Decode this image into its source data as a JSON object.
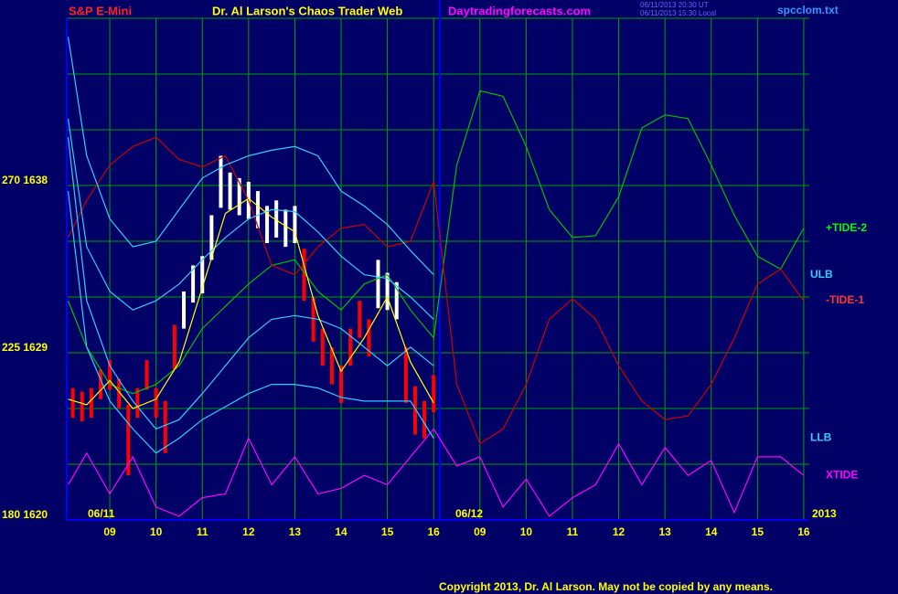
{
  "chart_data": {
    "type": "line",
    "symbol": "S&P E-Mini",
    "title": "Dr. Al Larson's Chaos Trader Web",
    "site": "Daytradingforecasts.com",
    "timestamps": [
      "06/11/2013 20:30 UT",
      "06/11/2013 15:30 Local"
    ],
    "file": "spcclom.txt",
    "copyright": "Copyright 2013, Dr. Al Larson. May not be copied by any means.",
    "date_labels": [
      "06/11",
      "06/12",
      "2013"
    ],
    "xlim": [
      0.07,
      16.12
    ],
    "ylim": [
      1620,
      1647
    ],
    "yticks": [
      {
        "value": 1620,
        "label": "180 1620"
      },
      {
        "value": 1629,
        "label": "225 1629"
      },
      {
        "value": 1638,
        "label": "270 1638"
      }
    ],
    "ygrid": [
      1620,
      1623,
      1626,
      1629,
      1632,
      1635,
      1638,
      1641,
      1644,
      1647
    ],
    "xticks": [
      {
        "value": 1,
        "label": "09"
      },
      {
        "value": 2,
        "label": "10"
      },
      {
        "value": 3,
        "label": "11"
      },
      {
        "value": 4,
        "label": "12"
      },
      {
        "value": 5,
        "label": "13"
      },
      {
        "value": 6,
        "label": "14"
      },
      {
        "value": 7,
        "label": "15"
      },
      {
        "value": 8,
        "label": "16"
      },
      {
        "value": 9,
        "label": "09"
      },
      {
        "value": 10,
        "label": "10"
      },
      {
        "value": 11,
        "label": "11"
      },
      {
        "value": 12,
        "label": "12"
      },
      {
        "value": 13,
        "label": "13"
      },
      {
        "value": 14,
        "label": "14"
      },
      {
        "value": 15,
        "label": "15"
      },
      {
        "value": 16,
        "label": "16"
      }
    ],
    "grid": true,
    "divider_x": 8.13,
    "x": [
      0.1,
      0.5,
      1,
      1.5,
      2,
      2.5,
      3,
      3.5,
      4,
      4.5,
      5,
      5.5,
      6,
      6.5,
      7,
      7.5,
      8,
      8.5,
      9,
      9.5,
      10,
      10.5,
      11,
      11.5,
      12,
      12.5,
      13,
      13.5,
      14,
      14.5,
      15,
      15.5,
      16
    ],
    "series": [
      {
        "name": "+TIDE-2",
        "color": "#00c000",
        "values": [
          1631.8,
          1629.3,
          1627.3,
          1626.8,
          1627.3,
          1628.3,
          1630.3,
          1631.5,
          1632.7,
          1633.7,
          1634.0,
          1632.3,
          1631.3,
          1632.7,
          1633.2,
          1631.3,
          1629.8,
          1639.1,
          1643.1,
          1642.8,
          1640.1,
          1636.7,
          1635.2,
          1635.3,
          1637.4,
          1641.1,
          1641.8,
          1641.6,
          1639.1,
          1636.4,
          1634.2,
          1633.5,
          1635.7
        ]
      },
      {
        "name": "-TIDE-1",
        "color": "#cc0000",
        "values": [
          1635.2,
          1637.2,
          1639.1,
          1640.1,
          1640.6,
          1639.4,
          1639.0,
          1639.6,
          1637.2,
          1633.7,
          1633.2,
          1634.7,
          1635.7,
          1635.9,
          1634.7,
          1635.0,
          1638.2,
          1627.3,
          1624.1,
          1624.9,
          1627.3,
          1630.8,
          1631.9,
          1630.8,
          1628.3,
          1626.4,
          1625.4,
          1625.6,
          1627.3,
          1629.8,
          1632.7,
          1633.5,
          1631.8
        ]
      },
      {
        "name": "XTIDE",
        "color": "#ff00ff",
        "values": [
          1621.9,
          1623.6,
          1621.4,
          1623.4,
          1620.7,
          1620.2,
          1621.2,
          1621.4,
          1624.4,
          1621.9,
          1623.4,
          1621.4,
          1621.7,
          1622.4,
          1621.9,
          1623.4,
          1624.9,
          1622.9,
          1623.4,
          1620.7,
          1622.2,
          1620.2,
          1621.2,
          1621.9,
          1624.1,
          1621.9,
          1623.9,
          1622.4,
          1623.2,
          1620.4,
          1623.4,
          1623.4,
          1622.4
        ]
      },
      {
        "name": "ULB",
        "color": "#33ccff",
        "values": [
          1646.0,
          1639.6,
          1636.2,
          1634.7,
          1635.0,
          1636.7,
          1638.4,
          1639.1,
          1639.6,
          1639.9,
          1640.1,
          1639.6,
          1637.7,
          1636.9,
          1635.9,
          1634.5,
          1633.2,
          null,
          null,
          null,
          null,
          null,
          null,
          null,
          null,
          null,
          null,
          null,
          null,
          null,
          null,
          null,
          null
        ]
      },
      {
        "name": "LLB",
        "color": "#33ccff",
        "values": [
          1637.7,
          1629.3,
          1626.4,
          1624.9,
          1623.6,
          1624.4,
          1625.4,
          1626.1,
          1626.8,
          1627.3,
          1627.3,
          1627.1,
          1626.6,
          1626.4,
          1626.4,
          1626.4,
          1624.4,
          null,
          null,
          null,
          null,
          null,
          null,
          null,
          null,
          null,
          null,
          null,
          null,
          null,
          null,
          null,
          null
        ]
      },
      {
        "color": "#33ccff",
        "values": [
          1641.6,
          1634.7,
          1632.3,
          1631.3,
          1631.8,
          1632.7,
          1634.0,
          1635.2,
          1636.2,
          1636.7,
          1636.6,
          1635.5,
          1634.2,
          1633.2,
          1633.0,
          1632.0,
          1630.8,
          null,
          null,
          null,
          null,
          null,
          null,
          null,
          null,
          null,
          null,
          null,
          null,
          null,
          null,
          null,
          null
        ]
      },
      {
        "color": "#33ccff",
        "values": [
          1640.6,
          1631.8,
          1628.3,
          1626.4,
          1624.9,
          1625.4,
          1626.8,
          1628.3,
          1629.8,
          1630.8,
          1631.0,
          1630.8,
          1630.3,
          1629.3,
          1628.3,
          1629.3,
          1628.3,
          null,
          null,
          null,
          null,
          null,
          null,
          null,
          null,
          null,
          null,
          null,
          null,
          null,
          null,
          null,
          null
        ]
      },
      {
        "color": "#ffff00",
        "values": [
          1626.5,
          1626.2,
          1627.5,
          1626.0,
          1626.5,
          1628.5,
          1632.5,
          1636.5,
          1637.3,
          1636.3,
          1635.5,
          1631.0,
          1628.0,
          1629.8,
          1632.0,
          1628.5,
          1626.3,
          null,
          null,
          null,
          null,
          null,
          null,
          null,
          null,
          null,
          null,
          null,
          null,
          null,
          null,
          null,
          null
        ]
      }
    ],
    "price_bars": {
      "x": [
        0.2,
        0.4,
        0.6,
        0.8,
        1.0,
        1.2,
        1.4,
        1.6,
        1.8,
        2.0,
        2.2,
        2.4,
        2.6,
        2.8,
        3.0,
        3.2,
        3.4,
        3.6,
        3.8,
        4.0,
        4.2,
        4.4,
        4.6,
        4.8,
        5.0,
        5.2,
        5.4,
        5.6,
        5.8,
        6.0,
        6.2,
        6.4,
        6.6,
        6.8,
        7.0,
        7.2,
        7.4,
        7.6,
        7.8,
        8.0
      ],
      "high": [
        1627.1,
        1626.9,
        1627.1,
        1628.1,
        1628.6,
        1627.6,
        1626.2,
        1627.1,
        1628.6,
        1627.1,
        1626.4,
        1630.5,
        1632.3,
        1633.7,
        1634.2,
        1636.4,
        1639.6,
        1638.7,
        1638.4,
        1638.2,
        1637.7,
        1636.9,
        1637.2,
        1636.7,
        1636.9,
        1634.6,
        1632.0,
        1630.3,
        1629.3,
        1628.3,
        1630.3,
        1631.8,
        1630.8,
        1634.0,
        1633.3,
        1632.8,
        1629.3,
        1627.2,
        1626.4,
        1627.8
      ],
      "low": [
        1625.5,
        1625.3,
        1625.5,
        1626.5,
        1627.0,
        1626.0,
        1622.4,
        1625.5,
        1627.0,
        1625.5,
        1623.6,
        1628.1,
        1630.3,
        1631.7,
        1632.2,
        1634.0,
        1636.8,
        1636.7,
        1636.4,
        1636.2,
        1635.7,
        1634.9,
        1635.2,
        1634.7,
        1634.9,
        1631.8,
        1629.6,
        1628.3,
        1627.3,
        1626.3,
        1628.3,
        1629.8,
        1628.8,
        1631.4,
        1631.3,
        1630.8,
        1626.3,
        1624.6,
        1624.4,
        1625.8
      ],
      "colors": [
        "#ff0000",
        "#ff0000",
        "#ff0000",
        "#ff0000",
        "#ff0000",
        "#ff0000",
        "#ff0000",
        "#ff0000",
        "#ff0000",
        "#ff0000",
        "#ff0000",
        "#ff0000",
        "#ffffff",
        "#ffffff",
        "#ffffff",
        "#ffffff",
        "#ffffff",
        "#ffffff",
        "#ffffff",
        "#ffffff",
        "#ffffff",
        "#ffffff",
        "#ffffff",
        "#ffffff",
        "#ffffff",
        "#ff0000",
        "#ff0000",
        "#ff0000",
        "#ff0000",
        "#ff0000",
        "#ff0000",
        "#ff0000",
        "#ff0000",
        "#ffffff",
        "#ffffff",
        "#ffffff",
        "#ff0000",
        "#ff0000",
        "#ff0000",
        "#ff0000"
      ]
    }
  }
}
